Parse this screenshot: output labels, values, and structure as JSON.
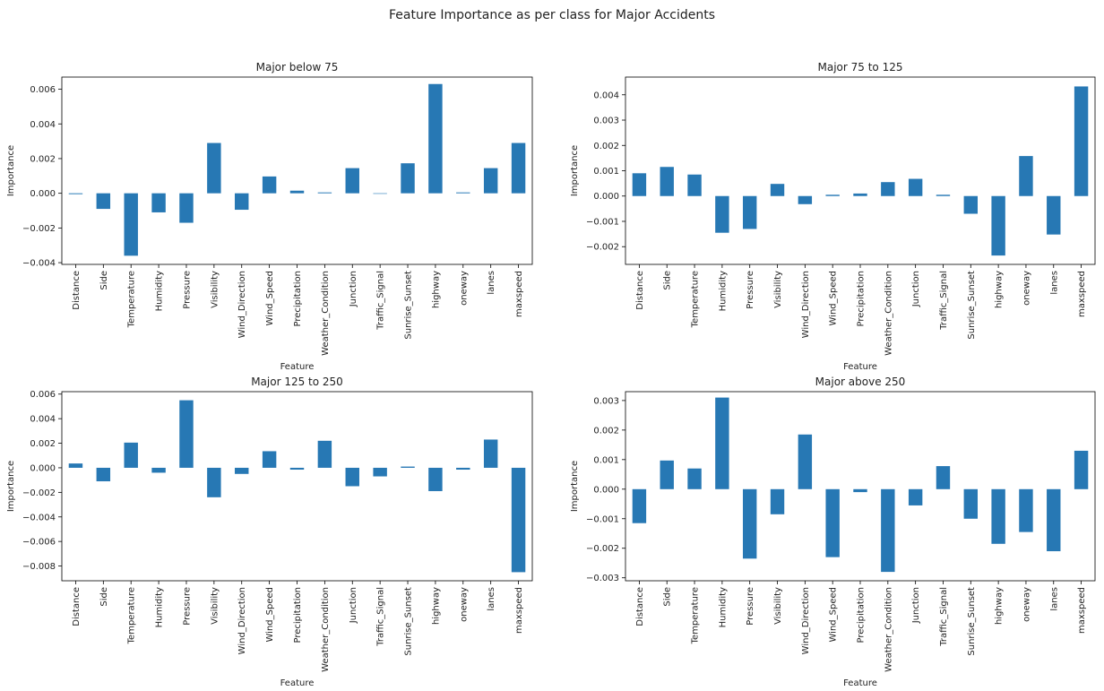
{
  "figure": {
    "title": "Feature Importance as per class for Major Accidents",
    "bar_color": "#2778b4"
  },
  "chart_data": [
    {
      "type": "bar",
      "title": "Major below 75",
      "xlabel": "Feature",
      "ylabel": "Importance",
      "ylim": [
        -0.0041,
        0.0067
      ],
      "yticks": [
        -0.004,
        -0.002,
        0.0,
        0.002,
        0.004,
        0.006
      ],
      "ytick_labels": [
        "−0.004",
        "−0.002",
        "0.000",
        "0.002",
        "0.004",
        "0.006"
      ],
      "categories": [
        "Distance",
        "Side",
        "Temperature",
        "Humidity",
        "Pressure",
        "Visibility",
        "Wind_Direction",
        "Wind_Speed",
        "Precipitation",
        "Weather_Condition",
        "Junction",
        "Traffic_Signal",
        "Sunrise_Sunset",
        "highway",
        "oneway",
        "lanes",
        "maxspeed"
      ],
      "values": [
        -5e-05,
        -0.0009,
        -0.0036,
        -0.0011,
        -0.0017,
        0.0029,
        -0.00095,
        0.00097,
        0.00015,
        5e-05,
        0.00145,
        0.0,
        0.00173,
        0.0063,
        5e-05,
        0.00145,
        0.0029
      ],
      "grid": false,
      "legend": "none"
    },
    {
      "type": "bar",
      "title": "Major 75 to 125",
      "xlabel": "Feature",
      "ylabel": "Importance",
      "ylim": [
        -0.0027,
        0.0047
      ],
      "yticks": [
        -0.002,
        -0.001,
        0.0,
        0.001,
        0.002,
        0.003,
        0.004
      ],
      "ytick_labels": [
        "−0.002",
        "−0.001",
        "0.000",
        "0.001",
        "0.002",
        "0.003",
        "0.004"
      ],
      "categories": [
        "Distance",
        "Side",
        "Temperature",
        "Humidity",
        "Pressure",
        "Visibility",
        "Wind_Direction",
        "Wind_Speed",
        "Precipitation",
        "Weather_Condition",
        "Junction",
        "Traffic_Signal",
        "Sunrise_Sunset",
        "highway",
        "oneway",
        "lanes",
        "maxspeed"
      ],
      "values": [
        0.0009,
        0.00115,
        0.00085,
        -0.00145,
        -0.0013,
        0.00048,
        -0.00032,
        5e-05,
        0.0001,
        0.00055,
        0.00068,
        5e-05,
        -0.0007,
        -0.00235,
        0.00158,
        -0.00152,
        0.00433
      ],
      "grid": false,
      "legend": "none"
    },
    {
      "type": "bar",
      "title": "Major 125 to 250",
      "xlabel": "Feature",
      "ylabel": "Importance",
      "ylim": [
        -0.0092,
        0.0062
      ],
      "yticks": [
        -0.008,
        -0.006,
        -0.004,
        -0.002,
        0.0,
        0.002,
        0.004,
        0.006
      ],
      "ytick_labels": [
        "−0.008",
        "−0.006",
        "−0.004",
        "−0.002",
        "0.000",
        "0.002",
        "0.004",
        "0.006"
      ],
      "categories": [
        "Distance",
        "Side",
        "Temperature",
        "Humidity",
        "Pressure",
        "Visibility",
        "Wind_Direction",
        "Wind_Speed",
        "Precipitation",
        "Weather_Condition",
        "Junction",
        "Traffic_Signal",
        "Sunrise_Sunset",
        "highway",
        "oneway",
        "lanes",
        "maxspeed"
      ],
      "values": [
        0.00035,
        -0.0011,
        0.00205,
        -0.0004,
        0.0055,
        -0.0024,
        -0.0005,
        0.00135,
        -0.00015,
        0.0022,
        -0.0015,
        -0.0007,
        0.0001,
        -0.0019,
        -0.00015,
        0.0023,
        -0.0085
      ],
      "grid": false,
      "legend": "none"
    },
    {
      "type": "bar",
      "title": "Major above 250",
      "xlabel": "Feature",
      "ylabel": "Importance",
      "ylim": [
        -0.0031,
        0.0033
      ],
      "yticks": [
        -0.003,
        -0.002,
        -0.001,
        0.0,
        0.001,
        0.002,
        0.003
      ],
      "ytick_labels": [
        "−0.003",
        "−0.002",
        "−0.001",
        "0.000",
        "0.001",
        "0.002",
        "0.003"
      ],
      "categories": [
        "Distance",
        "Side",
        "Temperature",
        "Humidity",
        "Pressure",
        "Visibility",
        "Wind_Direction",
        "Wind_Speed",
        "Precipitation",
        "Weather_Condition",
        "Junction",
        "Traffic_Signal",
        "Sunrise_Sunset",
        "highway",
        "oneway",
        "lanes",
        "maxspeed"
      ],
      "values": [
        -0.00115,
        0.00097,
        0.0007,
        0.0031,
        -0.00235,
        -0.00085,
        0.00185,
        -0.0023,
        -0.0001,
        -0.0028,
        -0.00055,
        0.00078,
        -0.001,
        -0.00185,
        -0.00145,
        -0.0021,
        0.0013
      ],
      "grid": false,
      "legend": "none"
    }
  ]
}
